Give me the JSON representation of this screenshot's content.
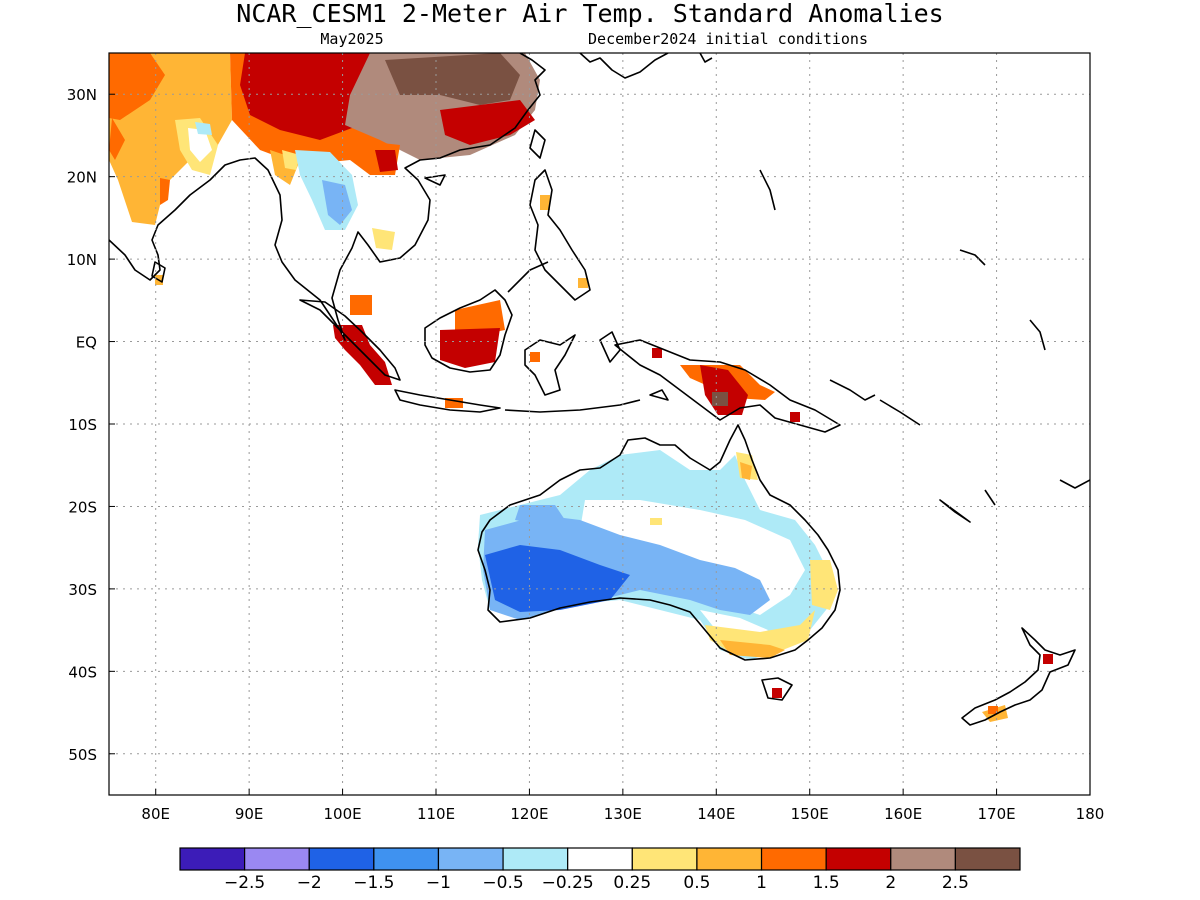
{
  "header": {
    "title": "NCAR_CESM1 2-Meter Air Temp. Standard Anomalies",
    "valid_month": "May2025",
    "init_conditions": "December2024 initial conditions"
  },
  "map": {
    "lon_range": [
      75,
      180
    ],
    "lat_range": [
      -55,
      35
    ],
    "lon_ticks": [
      {
        "value": 80,
        "label": "80E"
      },
      {
        "value": 90,
        "label": "90E"
      },
      {
        "value": 100,
        "label": "100E"
      },
      {
        "value": 110,
        "label": "110E"
      },
      {
        "value": 120,
        "label": "120E"
      },
      {
        "value": 130,
        "label": "130E"
      },
      {
        "value": 140,
        "label": "140E"
      },
      {
        "value": 150,
        "label": "150E"
      },
      {
        "value": 160,
        "label": "160E"
      },
      {
        "value": 170,
        "label": "170E"
      },
      {
        "value": 180,
        "label": "180"
      }
    ],
    "lat_ticks": [
      {
        "value": 30,
        "label": "30N"
      },
      {
        "value": 20,
        "label": "20N"
      },
      {
        "value": 10,
        "label": "10N"
      },
      {
        "value": 0,
        "label": "EQ"
      },
      {
        "value": -10,
        "label": "10S"
      },
      {
        "value": -20,
        "label": "20S"
      },
      {
        "value": -30,
        "label": "30S"
      },
      {
        "value": -40,
        "label": "40S"
      },
      {
        "value": -50,
        "label": "50S"
      }
    ],
    "grid": true
  },
  "colorbar": {
    "colors": [
      "#3c1cb8",
      "#9a88f2",
      "#1f62e6",
      "#3f92f0",
      "#78b4f5",
      "#aeeaf7",
      "#ffffff",
      "#ffe577",
      "#ffb535",
      "#ff6a00",
      "#c40000",
      "#b08a7c",
      "#7a5142"
    ],
    "labels": [
      "-2.5",
      "-2",
      "-1.5",
      "-1",
      "-0.5",
      "-0.25",
      "0.25",
      "0.5",
      "1",
      "1.5",
      "2",
      "2.5"
    ]
  }
}
